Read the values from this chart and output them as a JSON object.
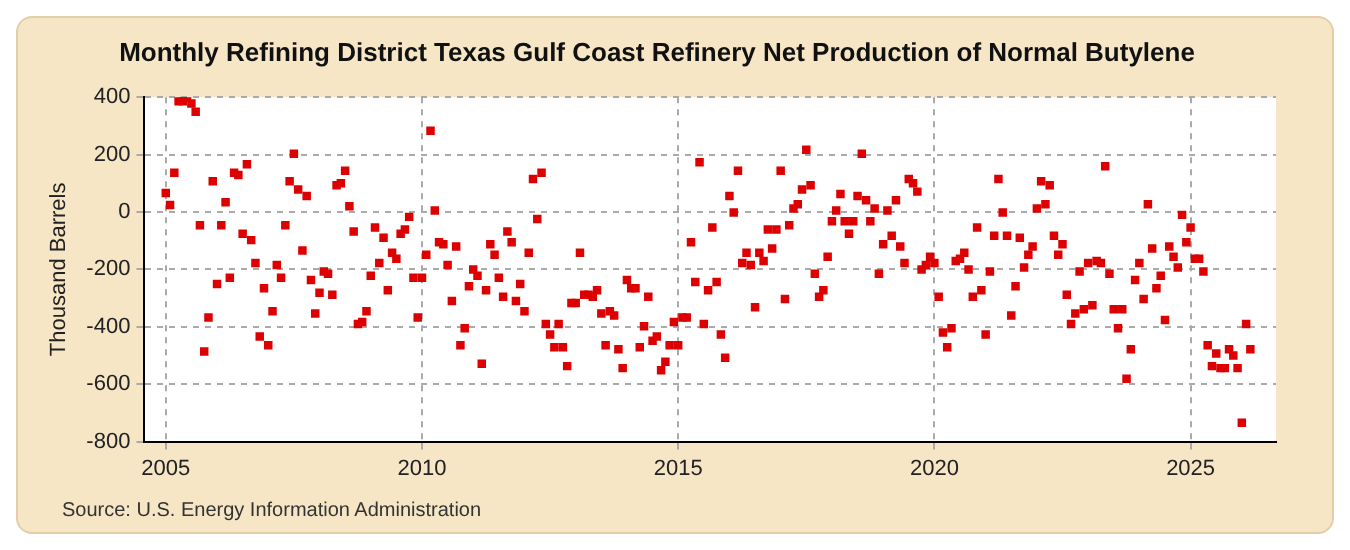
{
  "chart_data": {
    "type": "scatter",
    "title": "Monthly Refining District Texas Gulf Coast Refinery Net Production of Normal Butylene",
    "ylabel": "Thousand Barrels",
    "annotations": [
      "Source: U.S. Energy Information Administration"
    ],
    "series": [
      {
        "color": "#dd0000",
        "x": [
          "2005-01",
          "2005-02",
          "2005-03",
          "2005-04",
          "2005-05",
          "2005-06",
          "2005-07",
          "2005-08",
          "2005-09",
          "2005-10",
          "2005-11",
          "2005-12",
          "2006-01",
          "2006-02",
          "2006-03",
          "2006-04",
          "2006-05",
          "2006-06",
          "2006-07",
          "2006-08",
          "2006-09",
          "2006-10",
          "2006-11",
          "2006-12",
          "2007-01",
          "2007-02",
          "2007-03",
          "2007-04",
          "2007-05",
          "2007-06",
          "2007-07",
          "2007-08",
          "2007-09",
          "2007-10",
          "2007-11",
          "2007-12",
          "2008-01",
          "2008-02",
          "2008-03",
          "2008-04",
          "2008-05",
          "2008-06",
          "2008-07",
          "2008-08",
          "2008-09",
          "2008-10",
          "2008-11",
          "2008-12",
          "2009-01",
          "2009-02",
          "2009-03",
          "2009-04",
          "2009-05",
          "2009-06",
          "2009-07",
          "2009-08",
          "2009-09",
          "2009-10",
          "2009-11",
          "2009-12",
          "2010-01",
          "2010-02",
          "2010-03",
          "2010-04",
          "2010-05",
          "2010-06",
          "2010-07",
          "2010-08",
          "2010-09",
          "2010-10",
          "2010-11",
          "2010-12",
          "2011-01",
          "2011-02",
          "2011-03",
          "2011-04",
          "2011-05",
          "2011-06",
          "2011-07",
          "2011-08",
          "2011-09",
          "2011-10",
          "2011-11",
          "2011-12",
          "2012-01",
          "2012-02",
          "2012-03",
          "2012-04",
          "2012-05",
          "2012-06",
          "2012-07",
          "2012-08",
          "2012-09",
          "2012-10",
          "2012-11",
          "2012-12",
          "2013-01",
          "2013-02",
          "2013-03",
          "2013-04",
          "2013-05",
          "2013-06",
          "2013-07",
          "2013-08",
          "2013-09",
          "2013-10",
          "2013-11",
          "2013-12",
          "2014-01",
          "2014-02",
          "2014-03",
          "2014-04",
          "2014-05",
          "2014-06",
          "2014-07",
          "2014-08",
          "2014-09",
          "2014-10",
          "2014-11",
          "2014-12",
          "2015-01",
          "2015-02",
          "2015-03",
          "2015-04",
          "2015-05",
          "2015-06",
          "2015-07",
          "2015-08",
          "2015-09",
          "2015-10",
          "2015-11",
          "2015-12",
          "2016-01",
          "2016-02",
          "2016-03",
          "2016-04",
          "2016-05",
          "2016-06",
          "2016-07",
          "2016-08",
          "2016-09",
          "2016-10",
          "2016-11",
          "2016-12",
          "2017-01",
          "2017-02",
          "2017-03",
          "2017-04",
          "2017-05",
          "2017-06",
          "2017-07",
          "2017-08",
          "2017-09",
          "2017-10",
          "2017-11",
          "2017-12",
          "2018-01",
          "2018-02",
          "2018-03",
          "2018-04",
          "2018-05",
          "2018-06",
          "2018-07",
          "2018-08",
          "2018-09",
          "2018-10",
          "2018-11",
          "2018-12",
          "2019-01",
          "2019-02",
          "2019-03",
          "2019-04",
          "2019-05",
          "2019-06",
          "2019-07",
          "2019-08",
          "2019-09",
          "2019-10",
          "2019-11",
          "2019-12",
          "2020-01",
          "2020-02",
          "2020-03",
          "2020-04",
          "2020-05",
          "2020-06",
          "2020-07",
          "2020-08",
          "2020-09",
          "2020-10",
          "2020-11",
          "2020-12",
          "2021-01",
          "2021-02",
          "2021-03",
          "2021-04",
          "2021-05",
          "2021-06",
          "2021-07",
          "2021-08",
          "2021-09",
          "2021-10",
          "2021-11",
          "2021-12",
          "2022-01",
          "2022-02",
          "2022-03",
          "2022-04",
          "2022-05",
          "2022-06",
          "2022-07",
          "2022-08",
          "2022-09",
          "2022-10",
          "2022-11",
          "2022-12",
          "2023-01",
          "2023-02",
          "2023-03",
          "2023-04",
          "2023-05",
          "2023-06",
          "2023-07",
          "2023-08",
          "2023-09",
          "2023-10",
          "2023-11",
          "2023-12",
          "2024-01",
          "2024-02",
          "2024-03",
          "2024-04",
          "2024-05",
          "2024-06",
          "2024-07",
          "2024-08",
          "2024-09",
          "2024-10",
          "2024-11",
          "2024-12",
          "2025-01",
          "2025-02",
          "2025-03",
          "2025-04",
          "2025-05",
          "2025-06",
          "2025-07",
          "2025-08",
          "2025-09",
          "2025-10",
          "2025-11",
          "2025-12",
          "2026-01",
          "2026-02",
          "2026-03"
        ],
        "values": [
          66,
          24,
          137,
          386,
          386,
          400,
          378,
          349,
          -46,
          -486,
          -368,
          107,
          -251,
          -46,
          34,
          -229,
          137,
          129,
          -76,
          166,
          -98,
          -178,
          -434,
          -266,
          -464,
          -346,
          -185,
          -229,
          -46,
          107,
          203,
          78,
          -134,
          56,
          -237,
          -354,
          -281,
          -207,
          -215,
          -288,
          93,
          100,
          144,
          20,
          -68,
          -390,
          -383,
          -346,
          -222,
          -54,
          -178,
          -90,
          -273,
          -142,
          -163,
          -76,
          -61,
          -17,
          -229,
          -368,
          -229,
          -149,
          283,
          5,
          -105,
          -112,
          -185,
          -310,
          -120,
          -464,
          -405,
          -259,
          -200,
          -222,
          -529,
          -273,
          -112,
          -149,
          -229,
          -295,
          -68,
          -105,
          -310,
          -251,
          -346,
          -142,
          115,
          -24,
          137,
          -390,
          -427,
          -471,
          -390,
          -471,
          -537,
          -317,
          -317,
          -142,
          -288,
          -288,
          -295,
          -273,
          -354,
          -464,
          -346,
          -361,
          -478,
          -544,
          -237,
          -266,
          -266,
          -471,
          -398,
          -295,
          -449,
          -434,
          -551,
          -522,
          -464,
          -383,
          -464,
          -368,
          -368,
          -105,
          -244,
          173,
          -390,
          -273,
          -54,
          -244,
          -427,
          -508,
          56,
          -2,
          144,
          -178,
          -142,
          -185,
          -332,
          -142,
          -171,
          -61,
          -127,
          -61,
          144,
          -303,
          -46,
          12,
          27,
          78,
          217,
          93,
          -215,
          -295,
          -273,
          -156,
          -32,
          5,
          63,
          -32,
          -76,
          -32,
          56,
          203,
          41,
          -32,
          12,
          -215,
          -112,
          5,
          -83,
          41,
          -120,
          -178,
          115,
          100,
          71,
          -200,
          -185,
          -156,
          -178,
          -295,
          -420,
          -471,
          -405,
          -171,
          -163,
          -142,
          -200,
          -295,
          -54,
          -273,
          -427,
          -207,
          -83,
          115,
          -2,
          -83,
          -361,
          -259,
          -90,
          -193,
          -149,
          -120,
          12,
          107,
          27,
          93,
          -83,
          -149,
          -112,
          -288,
          -390,
          -354,
          -207,
          -339,
          -178,
          -325,
          -171,
          -178,
          159,
          -215,
          -339,
          -405,
          -339,
          -581,
          -478,
          -237,
          -178,
          -303,
          27,
          -127,
          -266,
          -222,
          -376,
          -120,
          -156,
          -193,
          -10,
          -105,
          -54,
          -163,
          -163,
          -207,
          -464,
          -537,
          -493,
          -544,
          -544,
          -478,
          -500,
          -544,
          -734,
          -390,
          -478
        ]
      }
    ],
    "xlim": [
      "2004-08",
      "2026-09"
    ],
    "xticks": [
      "2005",
      "2010",
      "2015",
      "2020",
      "2025"
    ],
    "ylim": [
      -800,
      400
    ],
    "yticks": [
      -800,
      -600,
      -400,
      -200,
      0,
      200,
      400
    ],
    "grid": true,
    "legend": false,
    "marker": "square"
  }
}
